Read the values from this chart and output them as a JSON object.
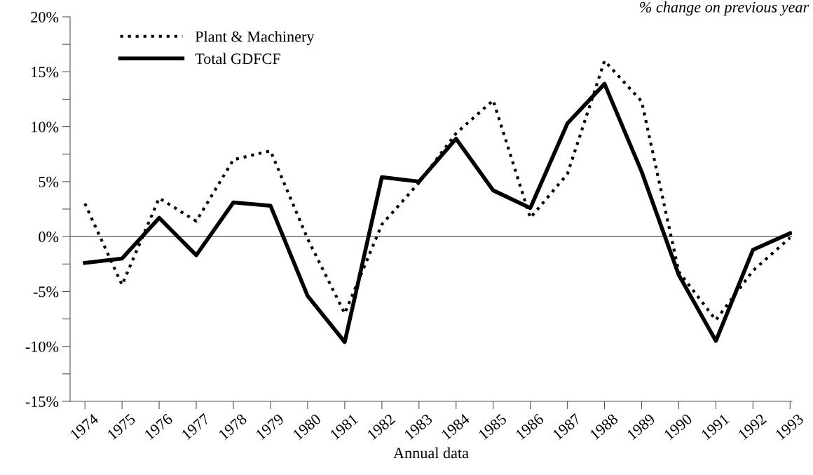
{
  "chart_data": {
    "type": "line",
    "subtitle": "% change on previous year",
    "xlabel": "Annual data",
    "categories": [
      "1974",
      "1975",
      "1976",
      "1977",
      "1978",
      "1979",
      "1980",
      "1981",
      "1982",
      "1983",
      "1984",
      "1985",
      "1986",
      "1987",
      "1988",
      "1989",
      "1990",
      "1991",
      "1992",
      "1993"
    ],
    "series": [
      {
        "name": "Plant & Machinery",
        "color": "#000000",
        "line_style": "dotted",
        "values": [
          3.0,
          -4.4,
          3.5,
          1.4,
          7.0,
          7.8,
          -0.2,
          -7.0,
          1.1,
          4.9,
          9.4,
          12.4,
          1.7,
          5.7,
          16.0,
          12.3,
          -3.2,
          -7.6,
          -3.1,
          -0.1
        ]
      },
      {
        "name": "Total GDFCF",
        "color": "#000000",
        "line_style": "solid",
        "values": [
          -2.4,
          -2.0,
          1.7,
          -1.7,
          3.1,
          2.8,
          -5.4,
          -9.6,
          5.4,
          5.0,
          8.9,
          4.2,
          2.6,
          10.3,
          13.9,
          5.9,
          -3.5,
          -9.5,
          -1.2,
          0.3
        ]
      }
    ],
    "ylim": [
      -15,
      20
    ],
    "yticks": [
      {
        "value": -15,
        "label": "-15%"
      },
      {
        "value": -12.5,
        "label": null
      },
      {
        "value": -10,
        "label": "-10%"
      },
      {
        "value": -7.5,
        "label": null
      },
      {
        "value": -5,
        "label": "-5%"
      },
      {
        "value": -2.5,
        "label": null
      },
      {
        "value": 0,
        "label": "0%"
      },
      {
        "value": 2.5,
        "label": null
      },
      {
        "value": 5,
        "label": "5%"
      },
      {
        "value": 7.5,
        "label": null
      },
      {
        "value": 10,
        "label": "10%"
      },
      {
        "value": 12.5,
        "label": null
      },
      {
        "value": 15,
        "label": "15%"
      },
      {
        "value": 17.5,
        "label": null
      },
      {
        "value": 20,
        "label": "20%"
      }
    ],
    "ref_lines": [
      {
        "axis": "y",
        "value": 0,
        "color": "#555555"
      }
    ],
    "grid": false,
    "legend": "top left",
    "marker": "none"
  }
}
